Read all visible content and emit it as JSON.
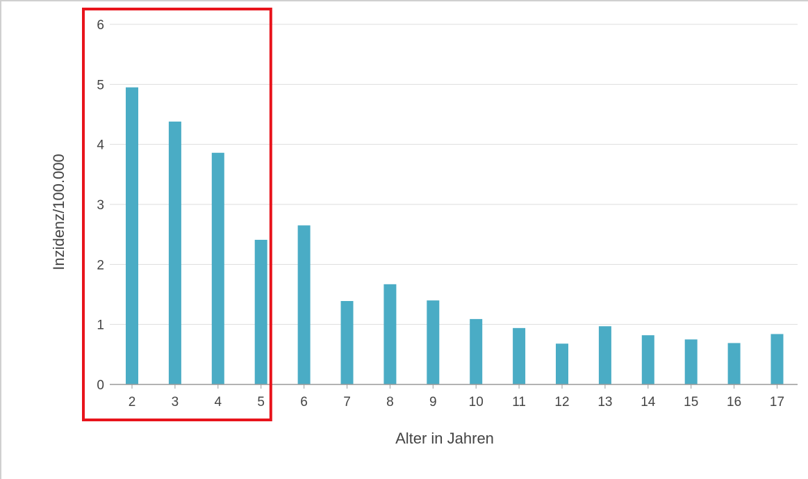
{
  "chart_data": {
    "type": "bar",
    "title": "",
    "xlabel": "Alter in Jahren",
    "ylabel": "Inzidenz/100.000",
    "categories": [
      "2",
      "3",
      "4",
      "5",
      "6",
      "7",
      "8",
      "9",
      "10",
      "11",
      "12",
      "13",
      "14",
      "15",
      "16",
      "17"
    ],
    "values": [
      4.95,
      4.38,
      3.86,
      2.41,
      2.65,
      1.39,
      1.67,
      1.4,
      1.09,
      0.94,
      0.68,
      0.97,
      0.82,
      0.75,
      0.69,
      0.84
    ],
    "ylim": [
      0,
      6
    ],
    "yticks": [
      "0",
      "1",
      "2",
      "3",
      "4",
      "5",
      "6"
    ],
    "grid": true,
    "bar_color": "#4aacc5",
    "highlight": {
      "categories": [
        "2",
        "3",
        "4"
      ],
      "color": "#e8141c"
    }
  }
}
